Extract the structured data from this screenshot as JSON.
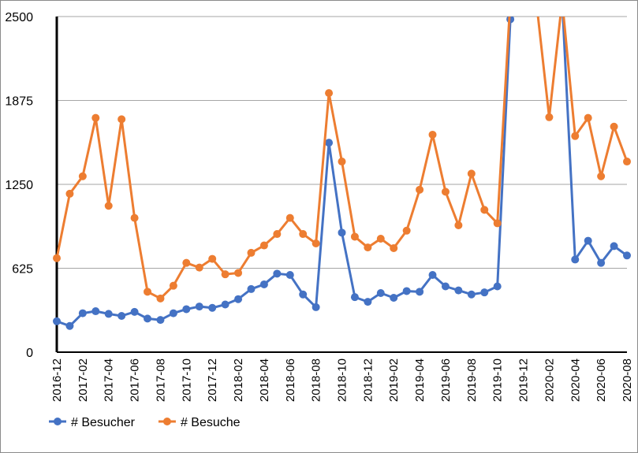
{
  "chart_data": {
    "type": "line",
    "title": "",
    "xlabel": "",
    "ylabel": "",
    "ylim": [
      0,
      2500
    ],
    "y_ticks": [
      "0",
      "625",
      "1250",
      "1875",
      "2500"
    ],
    "grid": true,
    "legend_position": "bottom-left",
    "x": [
      "2016-12",
      "2017-01",
      "2017-02",
      "2017-03",
      "2017-04",
      "2017-05",
      "2017-06",
      "2017-07",
      "2017-08",
      "2017-09",
      "2017-10",
      "2017-11",
      "2017-12",
      "2018-01",
      "2018-02",
      "2018-03",
      "2018-04",
      "2018-05",
      "2018-06",
      "2018-07",
      "2018-08",
      "2018-09",
      "2018-10",
      "2018-11",
      "2018-12",
      "2019-01",
      "2019-02",
      "2019-03",
      "2019-04",
      "2019-05",
      "2019-06",
      "2019-07",
      "2019-08",
      "2019-09",
      "2019-10",
      "2019-11",
      "2019-12",
      "2020-01",
      "2020-02",
      "2020-03",
      "2020-04",
      "2020-05",
      "2020-06",
      "2020-07",
      "2020-08"
    ],
    "x_tick_labels": [
      "2016-12",
      "2017-02",
      "2017-04",
      "2017-06",
      "2017-08",
      "2017-10",
      "2017-12",
      "2018-02",
      "2018-04",
      "2018-06",
      "2018-08",
      "2018-10",
      "2018-12",
      "2019-02",
      "2019-04",
      "2019-06",
      "2019-08",
      "2019-10",
      "2019-12",
      "2020-02",
      "2020-04",
      "2020-06",
      "2020-08"
    ],
    "series": [
      {
        "name": "# Besucher",
        "color": "#4472c4",
        "values": [
          230,
          195,
          290,
          305,
          285,
          270,
          300,
          250,
          240,
          290,
          320,
          340,
          330,
          355,
          395,
          470,
          505,
          585,
          575,
          430,
          335,
          1560,
          890,
          410,
          375,
          440,
          405,
          455,
          450,
          575,
          490,
          460,
          430,
          445,
          490,
          2480,
          null,
          null,
          null,
          null,
          690,
          830,
          665,
          790,
          720
        ]
      },
      {
        "name": "# Besuche",
        "color": "#ed7d31",
        "values": [
          700,
          1180,
          1310,
          1745,
          1090,
          1735,
          1000,
          450,
          400,
          495,
          665,
          630,
          695,
          580,
          590,
          740,
          795,
          880,
          1000,
          880,
          810,
          1930,
          1420,
          860,
          780,
          845,
          775,
          905,
          1210,
          1620,
          1195,
          945,
          1330,
          1060,
          960,
          null,
          null,
          null,
          1750,
          null,
          1610,
          1745,
          1310,
          1680,
          1420
        ]
      }
    ]
  }
}
